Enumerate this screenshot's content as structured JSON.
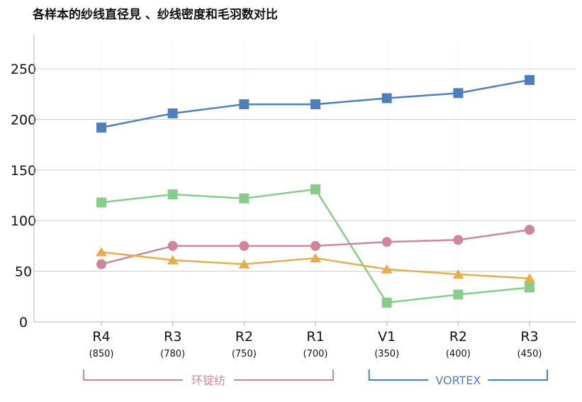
{
  "chart_data": {
    "type": "line",
    "title": "各样本的纱线直径見 、纱线密度和毛羽数对比",
    "xlabel": "",
    "ylabel": "",
    "ylim": [
      0,
      290
    ],
    "yticks": [
      0,
      50,
      100,
      150,
      200,
      250
    ],
    "grid": "horizontal",
    "categories": [
      {
        "label": "R4",
        "sub": "(850)"
      },
      {
        "label": "R3",
        "sub": "(780)"
      },
      {
        "label": "R2",
        "sub": "(750)"
      },
      {
        "label": "R1",
        "sub": "(700)"
      },
      {
        "label": "V1",
        "sub": "(350)"
      },
      {
        "label": "R2",
        "sub": "(400)"
      },
      {
        "label": "R3",
        "sub": "(450)"
      }
    ],
    "groups": [
      {
        "label": "环锭纺",
        "from": 0,
        "to": 3,
        "color": "#cc8899"
      },
      {
        "label": "VORTEX",
        "from": 4,
        "to": 6,
        "color": "#4f7fba"
      }
    ],
    "series": [
      {
        "marker": "square",
        "color": "#4f7fba",
        "values": [
          192,
          206,
          215,
          215,
          221,
          226,
          239
        ]
      },
      {
        "marker": "square",
        "color": "#88cc8c",
        "values": [
          118,
          126,
          122,
          131,
          19,
          27,
          34
        ]
      },
      {
        "marker": "circle",
        "color": "#cc8899",
        "values": [
          57,
          75,
          75,
          75,
          79,
          81,
          91
        ]
      },
      {
        "marker": "triangle",
        "color": "#e6ad4e",
        "values": [
          69,
          61,
          57,
          63,
          52,
          47,
          43
        ]
      }
    ]
  }
}
